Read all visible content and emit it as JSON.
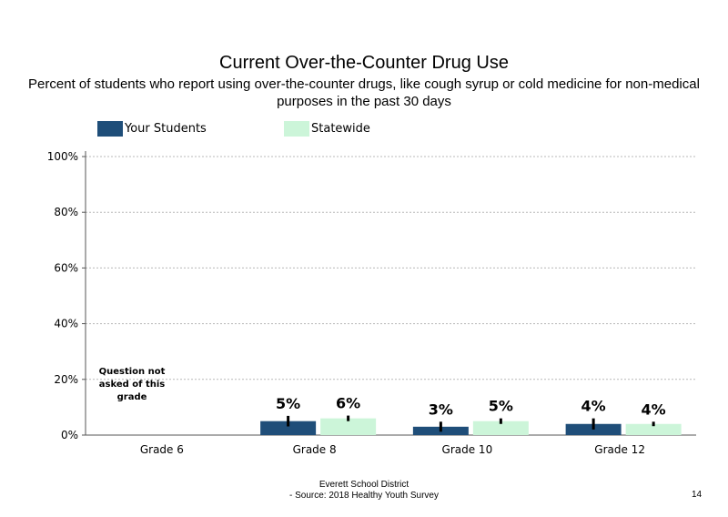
{
  "chart_data": {
    "type": "bar",
    "title": "Current Over-the-Counter Drug Use",
    "subtitle": "Percent of students who report using over-the-counter drugs, like cough syrup or cold medicine for non-medical purposes in the past 30 days",
    "categories": [
      "Grade 6",
      "Grade 8",
      "Grade 10",
      "Grade 12"
    ],
    "series": [
      {
        "name": "Your Students",
        "color": "#1f4e79",
        "values": [
          null,
          5,
          3,
          4
        ],
        "labels": [
          "",
          "5%",
          "3%",
          "4%"
        ],
        "error": [
          null,
          1.9,
          1.8,
          2.0
        ]
      },
      {
        "name": "Statewide",
        "color": "#ccf5d9",
        "values": [
          null,
          6,
          5,
          4
        ],
        "labels": [
          "",
          "6%",
          "5%",
          "4%"
        ],
        "error": [
          null,
          1.0,
          1.0,
          0.8
        ]
      }
    ],
    "yticks": [
      "0%",
      "20%",
      "40%",
      "60%",
      "80%",
      "100%"
    ],
    "ylim": [
      0,
      100
    ],
    "grid": true,
    "legend_position": "top"
  },
  "note": "Question not asked of this grade",
  "footer": {
    "line1": "Everett School District",
    "line2": "- Source: 2018 Healthy Youth Survey"
  },
  "page_number": "14"
}
